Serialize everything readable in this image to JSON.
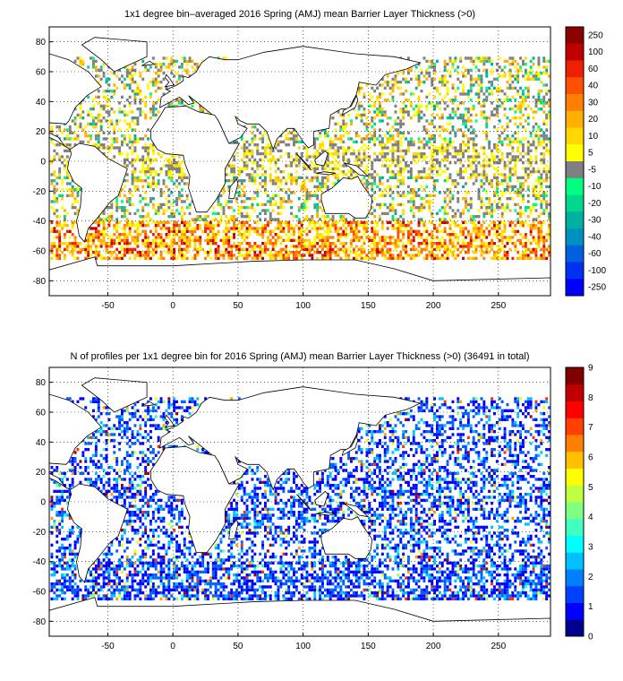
{
  "chart_data": [
    {
      "type": "heatmap",
      "title": "1x1 degree bin–averaged 2016 Spring (AMJ) mean Barrier Layer Thickness (>0)",
      "xlabel": "",
      "ylabel": "",
      "xlim": [
        -95,
        290
      ],
      "ylim": [
        -90,
        90
      ],
      "x_ticks": [
        -50,
        0,
        50,
        100,
        150,
        200,
        250
      ],
      "y_ticks": [
        80,
        60,
        40,
        20,
        0,
        -20,
        -40,
        -60,
        -80
      ],
      "grid": true,
      "colorbar": {
        "placement": "right",
        "labels": [
          "250",
          "100",
          "60",
          "40",
          "30",
          "20",
          "10",
          "5",
          "-5",
          "-10",
          "-20",
          "-30",
          "-40",
          "-60",
          "-100",
          "-250"
        ],
        "colors": [
          "#8b0000",
          "#c00000",
          "#ee2000",
          "#ff5000",
          "#ff8000",
          "#ffb000",
          "#ffd800",
          "#ffff00",
          "#808080",
          "#00ff80",
          "#00d890",
          "#00b0a0",
          "#0090c0",
          "#0060e0",
          "#0030f0",
          "#0000ff"
        ]
      }
    },
    {
      "type": "heatmap",
      "title": "N of profiles per 1x1 degree bin for 2016 Spring (AMJ) mean Barrier Layer Thickness (>0) (36491 in total)",
      "xlabel": "",
      "ylabel": "",
      "xlim": [
        -95,
        290
      ],
      "ylim": [
        -90,
        90
      ],
      "x_ticks": [
        -50,
        0,
        50,
        100,
        150,
        200,
        250
      ],
      "y_ticks": [
        80,
        60,
        40,
        20,
        0,
        -20,
        -40,
        -60,
        -80
      ],
      "grid": true,
      "colorbar": {
        "placement": "right",
        "range": [
          0,
          9
        ],
        "ticks": [
          0,
          1,
          2,
          3,
          4,
          5,
          6,
          7,
          8,
          9
        ],
        "colormap": "jet"
      }
    }
  ]
}
